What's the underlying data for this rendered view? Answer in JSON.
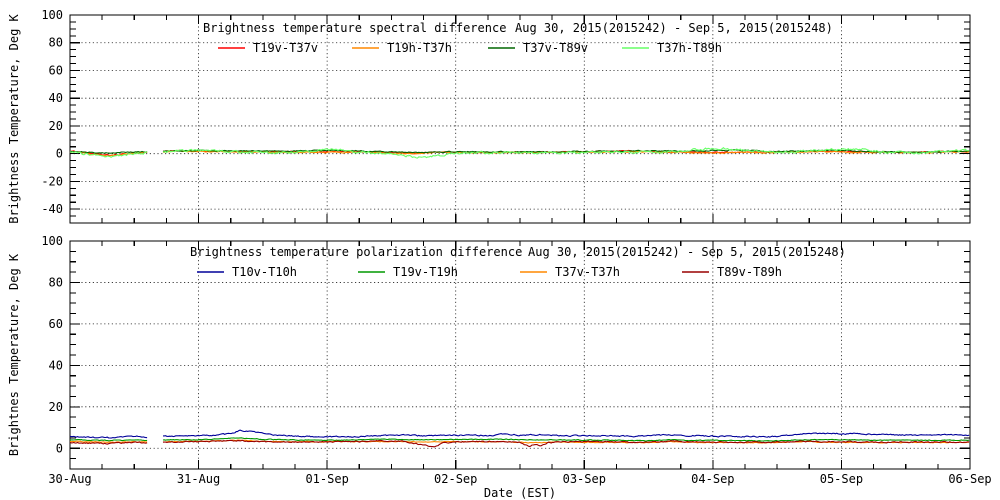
{
  "page": {
    "background": "#ffffff",
    "frame_color": "#000000",
    "grid_style": "dotted"
  },
  "chart_data": [
    {
      "type": "line",
      "title": "Brightness temperature spectral difference",
      "date_label": "Aug 30, 2015(2015242) - Sep  5, 2015(2015248)",
      "ylabel": "Brightness Temperature, Deg K",
      "ylim": [
        -50,
        100
      ],
      "y_major_ticks": [
        100,
        80,
        60,
        40,
        20,
        0,
        -20,
        -40
      ],
      "y_grid_ticks": [
        80,
        60,
        40,
        20,
        0,
        -20,
        -40
      ],
      "x_span_days": 7,
      "x_tick_labels": [
        "30-Aug",
        "31-Aug",
        "01-Sep",
        "02-Sep",
        "03-Sep",
        "04-Sep",
        "05-Sep",
        "06-Sep"
      ],
      "data_gap_days": [
        0.607,
        0.723
      ],
      "legend_position": "top-inside",
      "series": [
        {
          "name": "T19v-T37v",
          "color": "#ff0000",
          "noise": 0.35,
          "points": [
            [
              0,
              1.8
            ],
            [
              0.1,
              1.2
            ],
            [
              0.22,
              -0.5
            ],
            [
              0.3,
              -1.2
            ],
            [
              0.38,
              -0.8
            ],
            [
              0.5,
              0.8
            ],
            [
              0.61,
              1.2
            ],
            [
              0.73,
              1.8
            ],
            [
              0.9,
              2
            ],
            [
              1.1,
              1.8
            ],
            [
              1.4,
              1.6
            ],
            [
              1.7,
              1.5
            ],
            [
              2,
              1.3
            ],
            [
              2.3,
              1.4
            ],
            [
              2.55,
              0.4
            ],
            [
              2.7,
              0.3
            ],
            [
              2.85,
              1.2
            ],
            [
              3.1,
              1
            ],
            [
              3.4,
              1
            ],
            [
              3.7,
              1.3
            ],
            [
              4,
              1.4
            ],
            [
              4.35,
              2
            ],
            [
              4.6,
              1.4
            ],
            [
              4.9,
              0.9
            ],
            [
              5.2,
              1
            ],
            [
              5.5,
              1.3
            ],
            [
              5.85,
              1.9
            ],
            [
              6.1,
              1.4
            ],
            [
              6.4,
              1.2
            ],
            [
              6.7,
              1.4
            ],
            [
              7,
              1.5
            ]
          ]
        },
        {
          "name": "T19h-T37h",
          "color": "#ff8800",
          "noise": 0.35,
          "points": [
            [
              0,
              1.2
            ],
            [
              0.1,
              0.8
            ],
            [
              0.22,
              -1
            ],
            [
              0.3,
              -1.6
            ],
            [
              0.38,
              -1
            ],
            [
              0.5,
              0.4
            ],
            [
              0.61,
              0.8
            ],
            [
              0.73,
              1.4
            ],
            [
              0.9,
              1.6
            ],
            [
              1.2,
              1.4
            ],
            [
              1.5,
              1.2
            ],
            [
              2,
              1
            ],
            [
              2.3,
              1.1
            ],
            [
              2.55,
              0.1
            ],
            [
              2.7,
              0
            ],
            [
              2.85,
              0.9
            ],
            [
              3.1,
              0.8
            ],
            [
              3.5,
              0.8
            ],
            [
              4,
              1.1
            ],
            [
              4.35,
              1.6
            ],
            [
              4.6,
              1.1
            ],
            [
              4.9,
              0.6
            ],
            [
              5.2,
              0.7
            ],
            [
              5.5,
              1
            ],
            [
              5.85,
              1.5
            ],
            [
              6.1,
              1
            ],
            [
              6.4,
              0.8
            ],
            [
              6.7,
              1
            ],
            [
              7,
              1.2
            ]
          ]
        },
        {
          "name": "T37v-T89v",
          "color": "#006600",
          "noise": 0.3,
          "points": [
            [
              0,
              1.5
            ],
            [
              0.25,
              0.5
            ],
            [
              0.4,
              0.8
            ],
            [
              0.61,
              1.5
            ],
            [
              0.73,
              2
            ],
            [
              1,
              2.2
            ],
            [
              1.3,
              2
            ],
            [
              1.6,
              1.8
            ],
            [
              1.9,
              2.2
            ],
            [
              2.1,
              2.4
            ],
            [
              2.4,
              1.5
            ],
            [
              2.7,
              0.8
            ],
            [
              3,
              1.5
            ],
            [
              3.3,
              1.3
            ],
            [
              3.6,
              1.2
            ],
            [
              3.9,
              1.5
            ],
            [
              4.2,
              1.8
            ],
            [
              4.5,
              2.2
            ],
            [
              4.8,
              1.8
            ],
            [
              5,
              2.3
            ],
            [
              5.2,
              2.6
            ],
            [
              5.5,
              1.5
            ],
            [
              5.8,
              2.2
            ],
            [
              6,
              2.4
            ],
            [
              6.3,
              1.2
            ],
            [
              6.6,
              1
            ],
            [
              6.8,
              1.5
            ],
            [
              7,
              1.8
            ]
          ]
        },
        {
          "name": "T37h-T89h",
          "color": "#66ff66",
          "noise": 0.7,
          "points": [
            [
              0,
              1
            ],
            [
              0.2,
              -1
            ],
            [
              0.3,
              -2
            ],
            [
              0.45,
              -0.5
            ],
            [
              0.55,
              0.3
            ],
            [
              0.61,
              0.5
            ],
            [
              0.73,
              1.5
            ],
            [
              0.95,
              2.5
            ],
            [
              1.15,
              2
            ],
            [
              1.35,
              1
            ],
            [
              1.6,
              0.5
            ],
            [
              1.85,
              1.5
            ],
            [
              2.05,
              3.2
            ],
            [
              2.2,
              1.5
            ],
            [
              2.45,
              0
            ],
            [
              2.6,
              -1.5
            ],
            [
              2.75,
              -2.8
            ],
            [
              2.9,
              -0.8
            ],
            [
              3.1,
              0.5
            ],
            [
              3.4,
              1
            ],
            [
              3.7,
              0.3
            ],
            [
              4,
              0.8
            ],
            [
              4.3,
              1.2
            ],
            [
              4.6,
              0.8
            ],
            [
              4.85,
              3
            ],
            [
              5.05,
              3.8
            ],
            [
              5.25,
              2.5
            ],
            [
              5.5,
              0.8
            ],
            [
              5.75,
              2
            ],
            [
              5.95,
              3.2
            ],
            [
              6.15,
              3.4
            ],
            [
              6.35,
              1
            ],
            [
              6.6,
              0.5
            ],
            [
              6.8,
              1.8
            ],
            [
              7,
              2.5
            ]
          ]
        }
      ]
    },
    {
      "type": "line",
      "title": "Brightness temperature polarization difference",
      "date_label": "Aug 30, 2015(2015242) - Sep  5, 2015(2015248)",
      "ylabel": "Brightnes Temperature, Deg K",
      "xlabel": "Date (EST)",
      "ylim": [
        -10,
        100
      ],
      "y_major_ticks": [
        100,
        80,
        60,
        40,
        20,
        0
      ],
      "y_grid_ticks": [
        80,
        60,
        40,
        20,
        0
      ],
      "x_span_days": 7,
      "x_tick_labels": [
        "30-Aug",
        "31-Aug",
        "01-Sep",
        "02-Sep",
        "03-Sep",
        "04-Sep",
        "05-Sep",
        "06-Sep"
      ],
      "data_gap_days": [
        0.607,
        0.723
      ],
      "legend_position": "top-inside",
      "series": [
        {
          "name": "T10v-T10h",
          "color": "#000099",
          "noise": 0.25,
          "points": [
            [
              0,
              5.6
            ],
            [
              0.2,
              5.2
            ],
            [
              0.35,
              5
            ],
            [
              0.5,
              5.8
            ],
            [
              0.61,
              5.4
            ],
            [
              0.73,
              5.8
            ],
            [
              0.9,
              5.9
            ],
            [
              1.1,
              6.2
            ],
            [
              1.25,
              7
            ],
            [
              1.32,
              8.6
            ],
            [
              1.42,
              8
            ],
            [
              1.55,
              6.6
            ],
            [
              1.75,
              5.8
            ],
            [
              2,
              5.6
            ],
            [
              2.2,
              5.5
            ],
            [
              2.45,
              6.2
            ],
            [
              2.6,
              6.6
            ],
            [
              2.75,
              5.9
            ],
            [
              2.95,
              6.2
            ],
            [
              3.1,
              6.6
            ],
            [
              3.25,
              6
            ],
            [
              3.35,
              6.8
            ],
            [
              3.5,
              6.3
            ],
            [
              3.65,
              6.5
            ],
            [
              3.8,
              6.1
            ],
            [
              4,
              6.1
            ],
            [
              4.2,
              6
            ],
            [
              4.4,
              5.7
            ],
            [
              4.65,
              6.6
            ],
            [
              4.8,
              6.1
            ],
            [
              5,
              5.8
            ],
            [
              5.3,
              5.6
            ],
            [
              5.5,
              5.7
            ],
            [
              5.7,
              7
            ],
            [
              5.9,
              7.1
            ],
            [
              6.1,
              7
            ],
            [
              6.3,
              6.6
            ],
            [
              6.5,
              6.4
            ],
            [
              6.75,
              6.6
            ],
            [
              7,
              6.4
            ]
          ]
        },
        {
          "name": "T19v-T19h",
          "color": "#009900",
          "noise": 0.15,
          "points": [
            [
              0,
              4
            ],
            [
              0.3,
              3.8
            ],
            [
              0.61,
              4
            ],
            [
              0.73,
              4
            ],
            [
              1,
              4.1
            ],
            [
              1.32,
              5
            ],
            [
              1.5,
              4.3
            ],
            [
              1.8,
              4
            ],
            [
              2.1,
              3.9
            ],
            [
              2.45,
              4.4
            ],
            [
              2.7,
              4.1
            ],
            [
              3,
              4.2
            ],
            [
              3.3,
              4.4
            ],
            [
              3.6,
              4.1
            ],
            [
              3.9,
              4
            ],
            [
              4.2,
              3.9
            ],
            [
              4.5,
              3.7
            ],
            [
              4.65,
              4.1
            ],
            [
              4.85,
              3.8
            ],
            [
              5.2,
              3.7
            ],
            [
              5.5,
              3.6
            ],
            [
              5.7,
              4.1
            ],
            [
              6,
              4.1
            ],
            [
              6.3,
              3.9
            ],
            [
              6.6,
              3.9
            ],
            [
              7,
              3.9
            ]
          ]
        },
        {
          "name": "T37v-T37h",
          "color": "#ff8800",
          "noise": 0.15,
          "points": [
            [
              0,
              3.2
            ],
            [
              0.3,
              3
            ],
            [
              0.61,
              3.1
            ],
            [
              0.73,
              3.2
            ],
            [
              1,
              3.3
            ],
            [
              1.32,
              3.9
            ],
            [
              1.5,
              3.3
            ],
            [
              2,
              3.1
            ],
            [
              2.45,
              3.3
            ],
            [
              2.8,
              3.1
            ],
            [
              3.1,
              3.2
            ],
            [
              3.4,
              3.1
            ],
            [
              3.6,
              2.6
            ],
            [
              3.75,
              3
            ],
            [
              4,
              2.9
            ],
            [
              4.3,
              2.8
            ],
            [
              4.55,
              2.7
            ],
            [
              4.68,
              3.3
            ],
            [
              4.8,
              2.8
            ],
            [
              5.2,
              2.7
            ],
            [
              5.5,
              2.7
            ],
            [
              5.72,
              3.3
            ],
            [
              5.85,
              2.9
            ],
            [
              6.2,
              2.8
            ],
            [
              6.6,
              2.8
            ],
            [
              7,
              2.8
            ]
          ]
        },
        {
          "name": "T89v-T89h",
          "color": "#990000",
          "noise": 0.25,
          "points": [
            [
              0,
              2.9
            ],
            [
              0.15,
              2.4
            ],
            [
              0.3,
              2.3
            ],
            [
              0.45,
              2.8
            ],
            [
              0.61,
              2.8
            ],
            [
              0.73,
              3
            ],
            [
              1,
              3.3
            ],
            [
              1.32,
              3.7
            ],
            [
              1.5,
              3.2
            ],
            [
              1.8,
              3
            ],
            [
              2.1,
              3.1
            ],
            [
              2.4,
              3.5
            ],
            [
              2.6,
              3.3
            ],
            [
              2.78,
              1.2
            ],
            [
              2.83,
              0.6
            ],
            [
              2.9,
              2.6
            ],
            [
              3.1,
              3.3
            ],
            [
              3.3,
              3.2
            ],
            [
              3.5,
              2.8
            ],
            [
              3.57,
              0.8
            ],
            [
              3.62,
              2.2
            ],
            [
              3.66,
              0.9
            ],
            [
              3.72,
              2.8
            ],
            [
              3.9,
              3.1
            ],
            [
              4.1,
              3.2
            ],
            [
              4.35,
              3
            ],
            [
              4.55,
              2.9
            ],
            [
              4.7,
              3.6
            ],
            [
              4.82,
              3
            ],
            [
              5.1,
              2.9
            ],
            [
              5.4,
              2.9
            ],
            [
              5.7,
              3.3
            ],
            [
              5.95,
              3.1
            ],
            [
              6.3,
              3
            ],
            [
              6.6,
              3
            ],
            [
              7,
              3
            ]
          ]
        }
      ]
    }
  ]
}
